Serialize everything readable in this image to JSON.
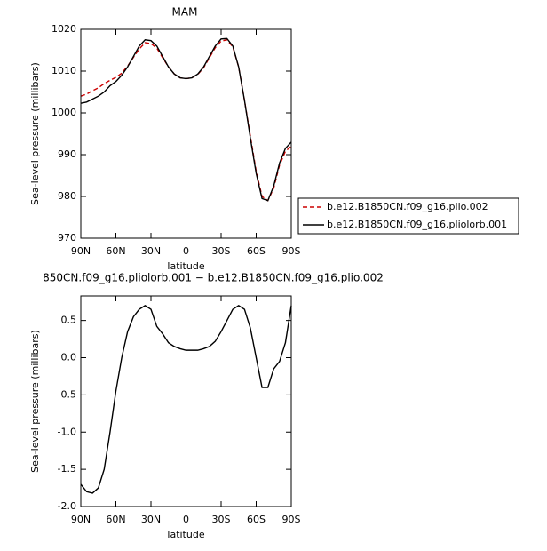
{
  "chart_data": [
    {
      "type": "line",
      "title": "MAM",
      "x_label": "latitude",
      "y_label": "Sea-level pressure (millibars)",
      "x": [
        90,
        85,
        80,
        75,
        70,
        65,
        60,
        55,
        50,
        45,
        40,
        35,
        30,
        25,
        20,
        15,
        10,
        5,
        0,
        -5,
        -10,
        -15,
        -20,
        -25,
        -30,
        -35,
        -40,
        -45,
        -50,
        -55,
        -60,
        -65,
        -70,
        -75,
        -80,
        -85,
        -90
      ],
      "xlim": [
        90,
        -90
      ],
      "xticks": [
        {
          "value": 90,
          "label": "90N"
        },
        {
          "value": 60,
          "label": "60N"
        },
        {
          "value": 30,
          "label": "30N"
        },
        0,
        {
          "value": -30,
          "label": "30S"
        },
        {
          "value": -60,
          "label": "60S"
        },
        {
          "value": -90,
          "label": "90S"
        }
      ],
      "ylim": [
        970,
        1020
      ],
      "yticks": [
        970,
        980,
        990,
        1000,
        1010,
        1020
      ],
      "legend": "right",
      "series": [
        {
          "name": "b.e12.B1850CN.f09_g16.plio.002",
          "color": "#cc0000",
          "dash": true,
          "values": [
            1004,
            1004.5,
            1005.3,
            1006,
            1007,
            1007.8,
            1008.5,
            1009.5,
            1011.2,
            1013.3,
            1015.3,
            1016.8,
            1016.6,
            1015.5,
            1013.2,
            1011,
            1009.3,
            1008.4,
            1008.2,
            1008.4,
            1009.2,
            1010.8,
            1013.2,
            1015.6,
            1017.2,
            1017.5,
            1015.8,
            1011,
            1003,
            994.5,
            986,
            980,
            979,
            982,
            987.5,
            990.8,
            992
          ]
        },
        {
          "name": "b.e12.B1850CN.f09_g16.pliolorb.001",
          "color": "#000000",
          "dash": false,
          "values": [
            1002.3,
            1002.6,
            1003.3,
            1004,
            1005,
            1006.5,
            1007.5,
            1009,
            1011,
            1013.5,
            1016,
            1017.5,
            1017.3,
            1016,
            1013.5,
            1011,
            1009.3,
            1008.4,
            1008.2,
            1008.4,
            1009.3,
            1011,
            1013.5,
            1016,
            1017.7,
            1017.8,
            1016,
            1011,
            1003,
            994,
            985.5,
            979.5,
            979,
            982.5,
            988,
            991.5,
            993
          ]
        }
      ]
    },
    {
      "type": "line",
      "title": "850CN.f09_g16.pliolorb.001 − b.e12.B1850CN.f09_g16.plio.002",
      "x_label": "latitude",
      "y_label": "Sea-level pressure (millibars)",
      "x": [
        90,
        85,
        80,
        75,
        70,
        65,
        60,
        55,
        50,
        45,
        40,
        35,
        30,
        25,
        20,
        15,
        10,
        5,
        0,
        -5,
        -10,
        -15,
        -20,
        -25,
        -30,
        -35,
        -40,
        -45,
        -50,
        -55,
        -60,
        -65,
        -70,
        -75,
        -80,
        -85,
        -90
      ],
      "xlim": [
        90,
        -90
      ],
      "xticks": [
        {
          "value": 90,
          "label": "90N"
        },
        {
          "value": 60,
          "label": "60N"
        },
        {
          "value": 30,
          "label": "30N"
        },
        0,
        {
          "value": -30,
          "label": "30S"
        },
        {
          "value": -60,
          "label": "60S"
        },
        {
          "value": -90,
          "label": "90S"
        }
      ],
      "ylim": [
        -2.0,
        0.83
      ],
      "yticks": [
        {
          "value": -2,
          "label": "-2.0"
        },
        -1.5,
        {
          "value": -1,
          "label": "-1.0"
        },
        -0.5,
        {
          "value": 0,
          "label": "0.0"
        },
        0.5
      ],
      "series": [
        {
          "color": "#000000",
          "dash": false,
          "values": [
            -1.7,
            -1.8,
            -1.82,
            -1.75,
            -1.5,
            -1.0,
            -0.45,
            0.0,
            0.35,
            0.55,
            0.65,
            0.7,
            0.65,
            0.42,
            0.32,
            0.2,
            0.15,
            0.12,
            0.1,
            0.1,
            0.1,
            0.12,
            0.15,
            0.22,
            0.35,
            0.5,
            0.65,
            0.7,
            0.65,
            0.4,
            0.0,
            -0.4,
            -0.4,
            -0.15,
            -0.05,
            0.2,
            0.7
          ]
        }
      ]
    }
  ]
}
